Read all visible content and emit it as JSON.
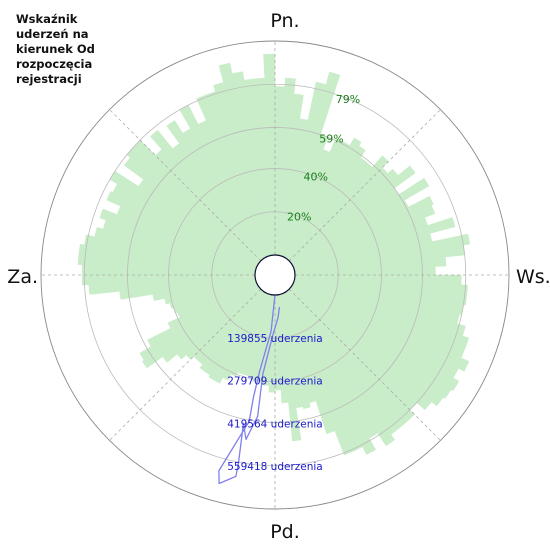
{
  "chart_data": {
    "type": "polar-bar",
    "title": "Wskaźnik\nuderzeń na\nkierunek Od\nrozpoczęcia\nrejestracji",
    "direction_labels": {
      "north": "Pn.",
      "east": "Ws.",
      "south": "Pd.",
      "west": "Za."
    },
    "radial_percent_ticks": [
      "20%",
      "40%",
      "59%",
      "79%"
    ],
    "radial_percent_values": [
      20,
      40,
      59,
      79
    ],
    "count_ticks": [
      "139855 uderzenia",
      "279709 uderzenia",
      "419564 uderzenia",
      "559418 uderzenia"
    ],
    "count_values": [
      139855,
      279709,
      419564,
      559418
    ],
    "percent_max": 99,
    "count_max": 699273,
    "series": [
      {
        "kind": "bars",
        "color": "#c9ecc9",
        "bins_per_circle": 120,
        "start_bearing_deg": 0,
        "values_percent": [
          78,
          82,
          75,
          64,
          82,
          88,
          59,
          53,
          60,
          60,
          64,
          62,
          58,
          58,
          65,
          61,
          64,
          71,
          59,
          73,
          60,
          71,
          70,
          65,
          77,
          65,
          82,
          79,
          70,
          65,
          77,
          80,
          80,
          79,
          78,
          82,
          85,
          85,
          89,
          86,
          89,
          88,
          87,
          84,
          79,
          82,
          82,
          82,
          85,
          78,
          84,
          80,
          80,
          68,
          52,
          54,
          53,
          68,
          50,
          44,
          45,
          42,
          41,
          41,
          39,
          39,
          39,
          41,
          44,
          47,
          47,
          46,
          46,
          44,
          44,
          46,
          49,
          55,
          64,
          63,
          57,
          45,
          39,
          40,
          41,
          43,
          48,
          63,
          77,
          80,
          80,
          82,
          82,
          80,
          76,
          73,
          76,
          69,
          76,
          75,
          79,
          66,
          77,
          79,
          79,
          69,
          77,
          66,
          76,
          69,
          79,
          69,
          80,
          80,
          83,
          91,
          86,
          82,
          82,
          93
        ]
      },
      {
        "kind": "line",
        "color": "#8080ee",
        "points": [
          {
            "bearing": 180,
            "count": 0
          },
          {
            "bearing": 184,
            "count": 120000
          },
          {
            "bearing": 189,
            "count": 250000
          },
          {
            "bearing": 190,
            "count": 340000
          },
          {
            "bearing": 190,
            "count": 420000
          },
          {
            "bearing": 196,
            "count": 600000
          },
          {
            "bearing": 195,
            "count": 640000
          },
          {
            "bearing": 191,
            "count": 605000
          },
          {
            "bearing": 191,
            "count": 560000
          },
          {
            "bearing": 192,
            "count": 430000
          },
          {
            "bearing": 190,
            "count": 480000
          },
          {
            "bearing": 187,
            "count": 400000
          },
          {
            "bearing": 187,
            "count": 260000
          },
          {
            "bearing": 182,
            "count": 130000
          },
          {
            "bearing": 176,
            "count": 75000
          },
          {
            "bearing": 172,
            "count": 40000
          }
        ]
      }
    ]
  }
}
